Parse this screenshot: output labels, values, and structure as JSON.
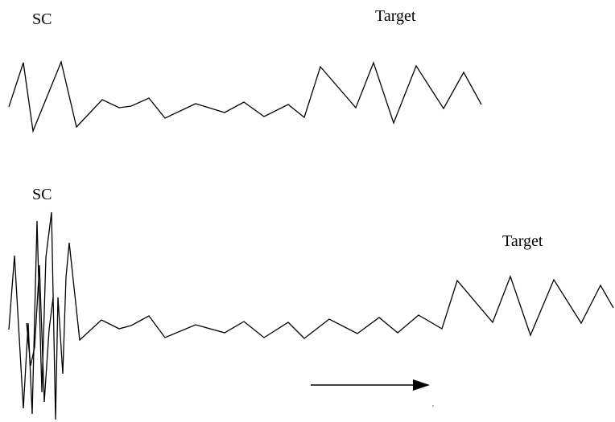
{
  "diagram": {
    "top": {
      "left_label": "SC",
      "right_label": "Target"
    },
    "bottom": {
      "left_label": "SC",
      "right_label": "Target"
    }
  },
  "colors": {
    "stroke": "#000000",
    "background": "#ffffff"
  }
}
